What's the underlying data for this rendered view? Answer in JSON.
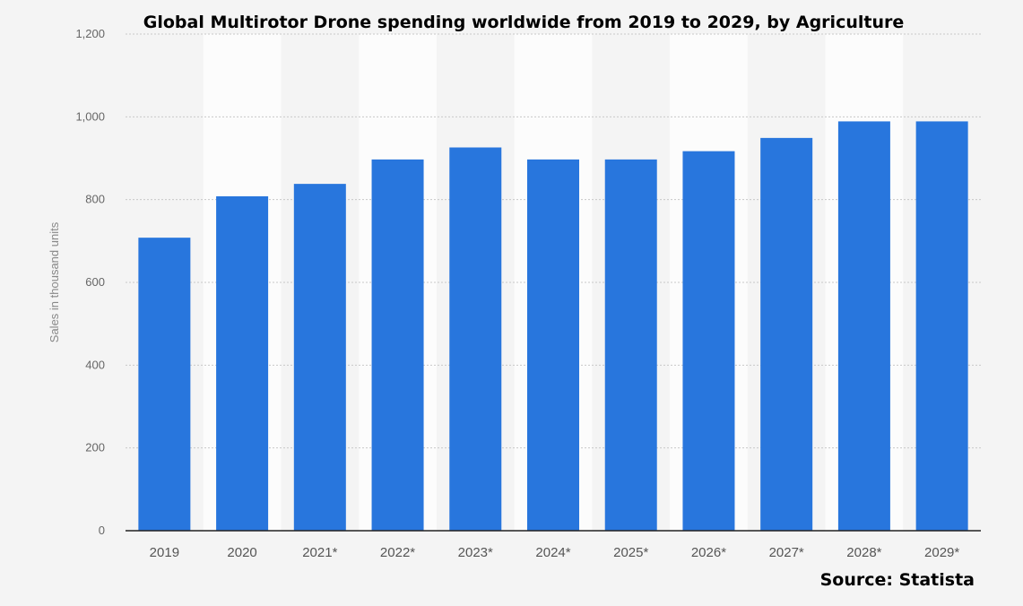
{
  "chart_data": {
    "type": "bar",
    "title": "Global Multirotor Drone spending worldwide from 2019 to 2029, by Agriculture",
    "ylabel": "Sales in thousand units",
    "xlabel": "",
    "categories": [
      "2019",
      "2020",
      "2021*",
      "2022*",
      "2023*",
      "2024*",
      "2025*",
      "2026*",
      "2027*",
      "2028*",
      "2029*"
    ],
    "values": [
      708,
      808,
      838,
      897,
      926,
      897,
      897,
      917,
      949,
      989,
      989
    ],
    "ylim": [
      0,
      1200
    ],
    "yticks": [
      0,
      200,
      400,
      600,
      800,
      1000,
      1200
    ],
    "ytick_labels": [
      "0",
      "200",
      "400",
      "600",
      "800",
      "1,000",
      "1,200"
    ],
    "grid": true,
    "legend": "none",
    "source": "Source: Statista",
    "colors": {
      "bar": "#2876dd",
      "background": "#f4f4f4",
      "band": "#ffffff",
      "grid": "#c8c8c8",
      "axis": "#222222"
    }
  }
}
